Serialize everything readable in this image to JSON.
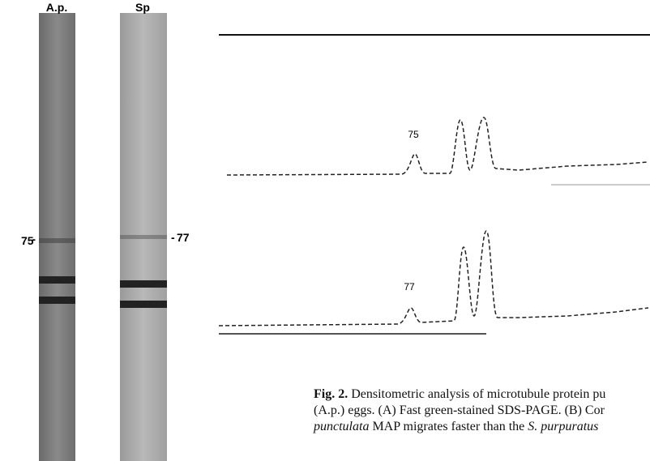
{
  "gel": {
    "lanes": [
      {
        "label": "A.p.",
        "band": "75"
      },
      {
        "label": "Sp",
        "band": "77"
      }
    ]
  },
  "traces": [
    {
      "peak_label": "75"
    },
    {
      "peak_label": "77"
    }
  ],
  "caption": {
    "label": "Fig. 2.",
    "lines": [
      "Densitometric analysis of microtubule protein pu",
      "(A.p.) eggs. (A) Fast green-stained SDS-PAGE. (B) Cor"
    ],
    "line3": [
      "punctulata",
      " MAP migrates faster than the ",
      "S. purpuratus"
    ]
  }
}
